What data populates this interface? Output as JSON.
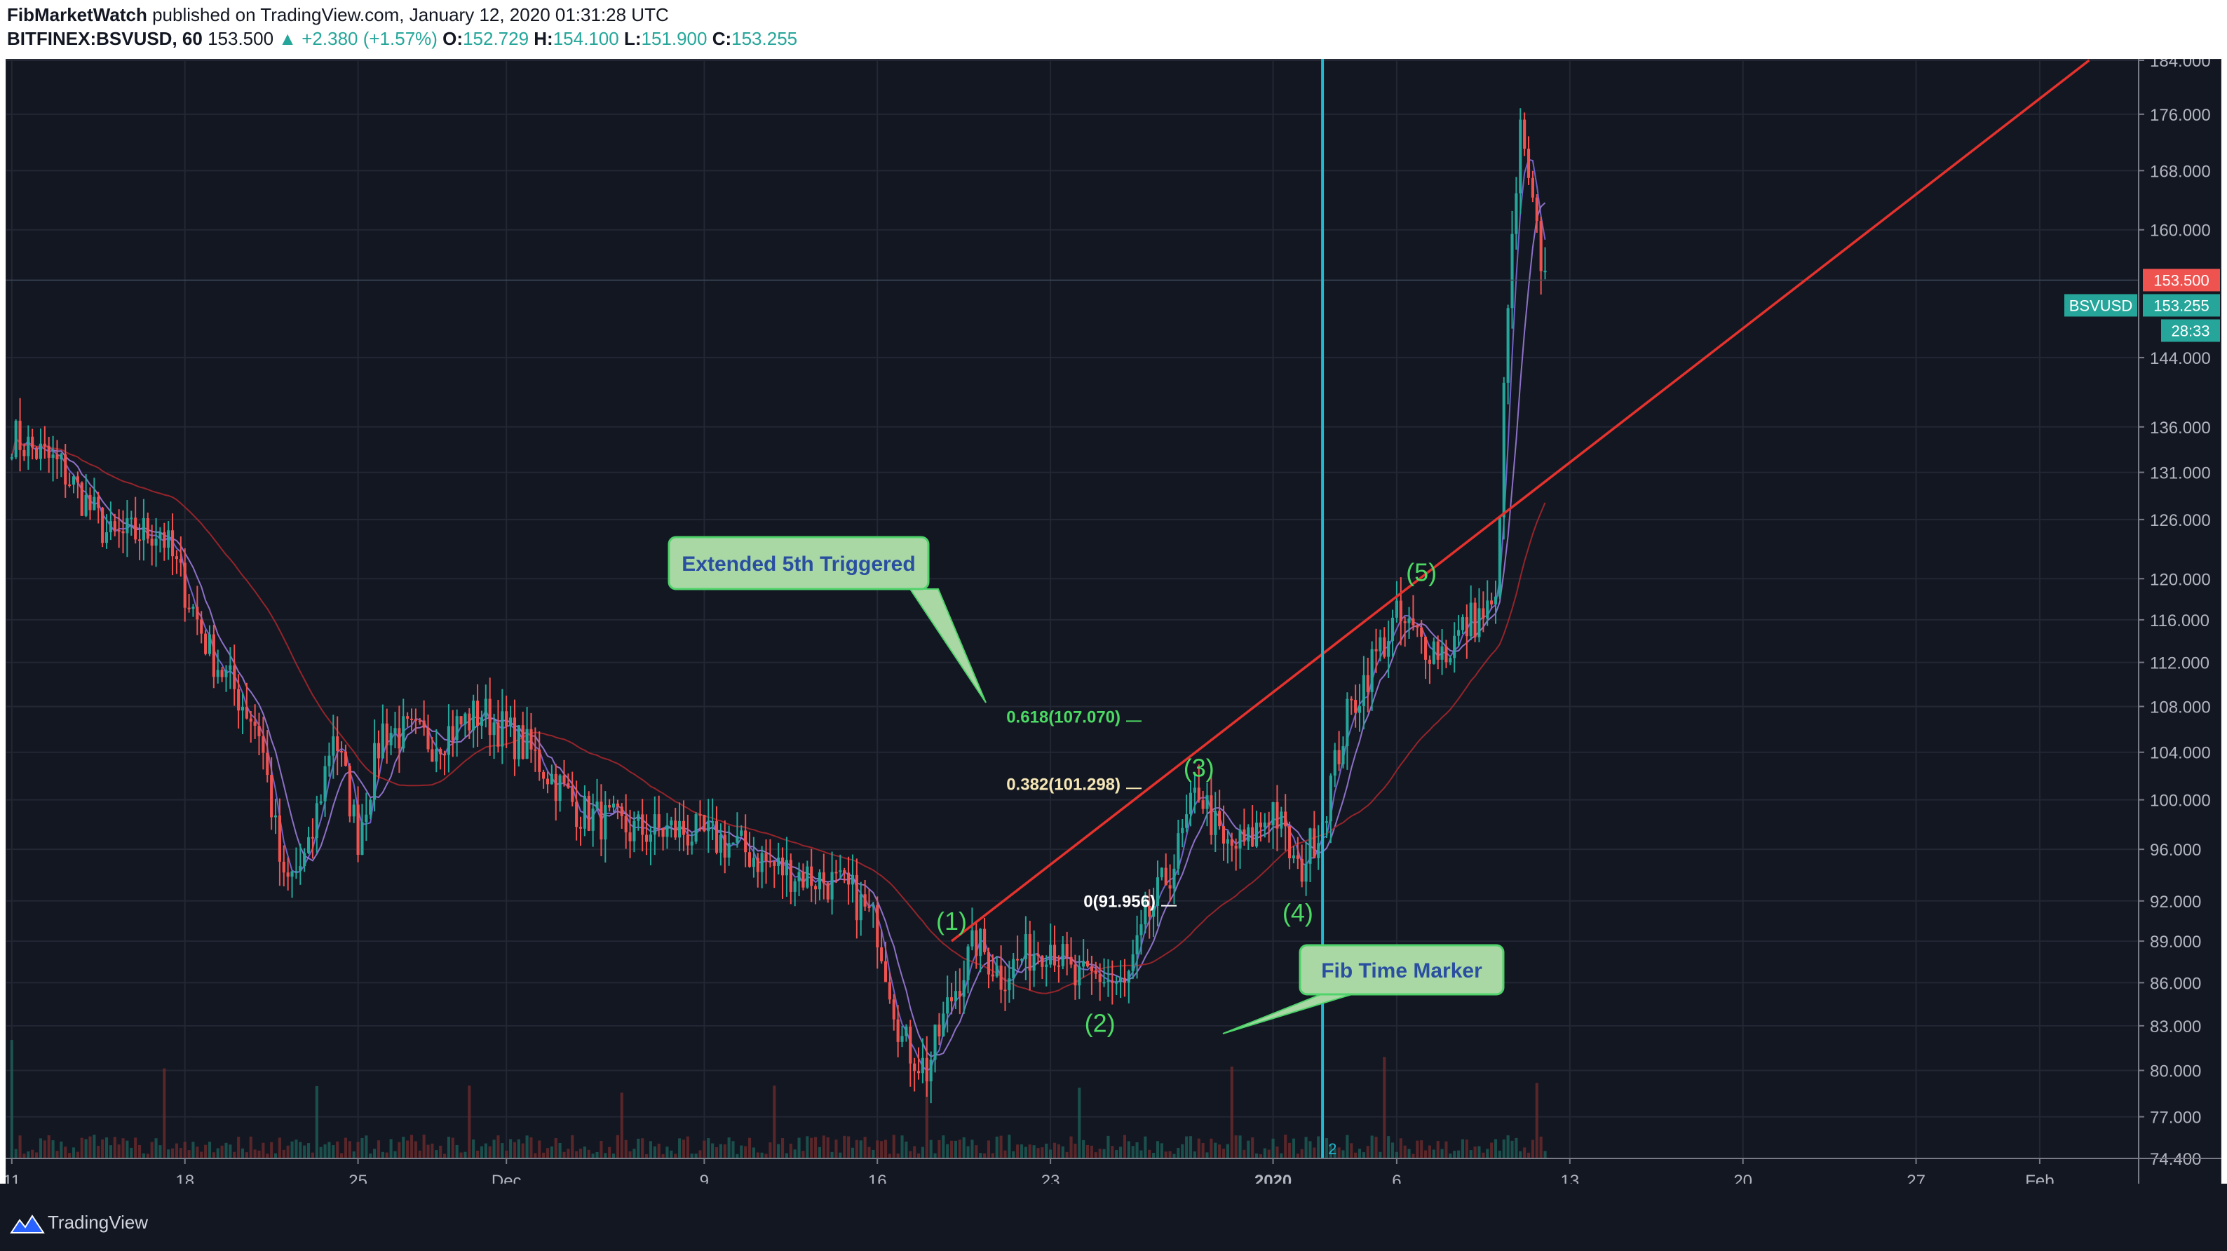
{
  "header": {
    "author": "FibMarketWatch",
    "published_text": "published on TradingView.com, January 12, 2020 01:31:28 UTC",
    "symbol": "BITFINEX:BSVUSD, 60",
    "last": "153.500",
    "change": "▲ +2.380 (+1.57%)",
    "o_label": "O:",
    "o_value": "152.729",
    "h_label": "H:",
    "h_value": "154.100",
    "l_label": "L:",
    "l_value": "151.900",
    "c_label": "C:",
    "c_value": "153.255"
  },
  "footer": {
    "brand": "TradingView"
  },
  "colors": {
    "background": "#131722",
    "up_candle": "#26a69a",
    "down_candle": "#ef5350",
    "trendline": "#e5322d",
    "fib_time_marker": "#22b8cf",
    "wave_label": "#4cd964",
    "callout_fill": "#a9d8a5",
    "callout_text": "#2a4fa0"
  },
  "chart_data": {
    "type": "candlestick",
    "title": "BITFINEX:BSVUSD, 60",
    "x_tick_labels": [
      "11",
      "18",
      "25",
      "Dec",
      "9",
      "16",
      "23",
      "2020",
      "6",
      "13",
      "20",
      "27",
      "Feb"
    ],
    "y_tick_labels": [
      "184.000",
      "176.000",
      "168.000",
      "160.000",
      "144.000",
      "136.000",
      "131.000",
      "126.000",
      "120.000",
      "116.000",
      "112.000",
      "108.000",
      "104.000",
      "100.000",
      "96.000",
      "92.000",
      "89.000",
      "86.000",
      "83.000",
      "80.000",
      "77.000",
      "74.400"
    ],
    "ylim": [
      74.4,
      184
    ],
    "y_scale": "log",
    "price_series": [
      {
        "date": "2019-11-11",
        "price": 135.0
      },
      {
        "date": "2019-11-13",
        "price": 131.5
      },
      {
        "date": "2019-11-15",
        "price": 124.0
      },
      {
        "date": "2019-11-17",
        "price": 125.0
      },
      {
        "date": "2019-11-19",
        "price": 113.0
      },
      {
        "date": "2019-11-21",
        "price": 106.0
      },
      {
        "date": "2019-11-22",
        "price": 93.0
      },
      {
        "date": "2019-11-23",
        "price": 95.5
      },
      {
        "date": "2019-11-24",
        "price": 106.0
      },
      {
        "date": "2019-11-25",
        "price": 97.0
      },
      {
        "date": "2019-11-26",
        "price": 106.0
      },
      {
        "date": "2019-11-28",
        "price": 105.0
      },
      {
        "date": "2019-11-30",
        "price": 107.5
      },
      {
        "date": "2019-12-02",
        "price": 104.0
      },
      {
        "date": "2019-12-04",
        "price": 99.0
      },
      {
        "date": "2019-12-06",
        "price": 97.5
      },
      {
        "date": "2019-12-08",
        "price": 97.5
      },
      {
        "date": "2019-12-10",
        "price": 96.5
      },
      {
        "date": "2019-12-12",
        "price": 94.5
      },
      {
        "date": "2019-12-14",
        "price": 93.5
      },
      {
        "date": "2019-12-15",
        "price": 92.5
      },
      {
        "date": "2019-12-16",
        "price": 90.0
      },
      {
        "date": "2019-12-17",
        "price": 82.0
      },
      {
        "date": "2019-12-18",
        "price": 80.0
      },
      {
        "date": "2019-12-19",
        "price": 85.0
      },
      {
        "date": "2019-12-20",
        "price": 89.0
      },
      {
        "date": "2019-12-21",
        "price": 86.5
      },
      {
        "date": "2019-12-22",
        "price": 88.0
      },
      {
        "date": "2019-12-23",
        "price": 89.0
      },
      {
        "date": "2019-12-24",
        "price": 86.0
      },
      {
        "date": "2019-12-25",
        "price": 86.5
      },
      {
        "date": "2019-12-26",
        "price": 85.5
      },
      {
        "date": "2019-12-27",
        "price": 91.0
      },
      {
        "date": "2019-12-28",
        "price": 95.0
      },
      {
        "date": "2019-12-29",
        "price": 101.0
      },
      {
        "date": "2019-12-30",
        "price": 96.0
      },
      {
        "date": "2019-12-31",
        "price": 96.5
      },
      {
        "date": "2020-01-01",
        "price": 99.5
      },
      {
        "date": "2020-01-02",
        "price": 94.0
      },
      {
        "date": "2020-01-03",
        "price": 98.5
      },
      {
        "date": "2020-01-04",
        "price": 107.0
      },
      {
        "date": "2020-01-05",
        "price": 112.0
      },
      {
        "date": "2020-01-06",
        "price": 116.0
      },
      {
        "date": "2020-01-07",
        "price": 114.0
      },
      {
        "date": "2020-01-08",
        "price": 113.0
      },
      {
        "date": "2020-01-09",
        "price": 116.0
      },
      {
        "date": "2020-01-10",
        "price": 117.0
      },
      {
        "date": "2020-01-10",
        "price": 150.0
      },
      {
        "date": "2020-01-11",
        "price": 173.0
      },
      {
        "date": "2020-01-11",
        "price": 162.0
      },
      {
        "date": "2020-01-12",
        "price": 153.5
      }
    ],
    "trendline": {
      "start": {
        "date": "2019-12-19",
        "price": 89.0
      },
      "end": {
        "date": "2020-02-03",
        "price": 184.0
      }
    },
    "fib_time_marker": {
      "date": "2020-01-03",
      "label": "2"
    },
    "fib_levels": [
      {
        "label": "0.618(107.070)",
        "price": 107.07
      },
      {
        "label": "0.382(101.298)",
        "price": 101.298
      },
      {
        "label": "0(91.956)",
        "price": 91.956
      }
    ],
    "wave_labels": [
      {
        "label": "(1)",
        "date": "2019-12-19",
        "price": 89.0
      },
      {
        "label": "(2)",
        "date": "2019-12-25",
        "price": 85.0
      },
      {
        "label": "(3)",
        "date": "2019-12-29",
        "price": 101.0
      },
      {
        "label": "(4)",
        "date": "2020-01-02",
        "price": 93.0
      },
      {
        "label": "(5)",
        "date": "2020-01-07",
        "price": 118.0
      }
    ],
    "callouts": [
      {
        "text": "Extended 5th Triggered"
      },
      {
        "text": "Fib Time Marker"
      }
    ],
    "price_tags": [
      {
        "label": "",
        "value": "153.500",
        "color": "#ef5350"
      },
      {
        "label": "BSVUSD",
        "value": "153.255",
        "color": "#26a69a"
      },
      {
        "label": "",
        "value": "28:33",
        "color": "#26a69a"
      }
    ]
  }
}
